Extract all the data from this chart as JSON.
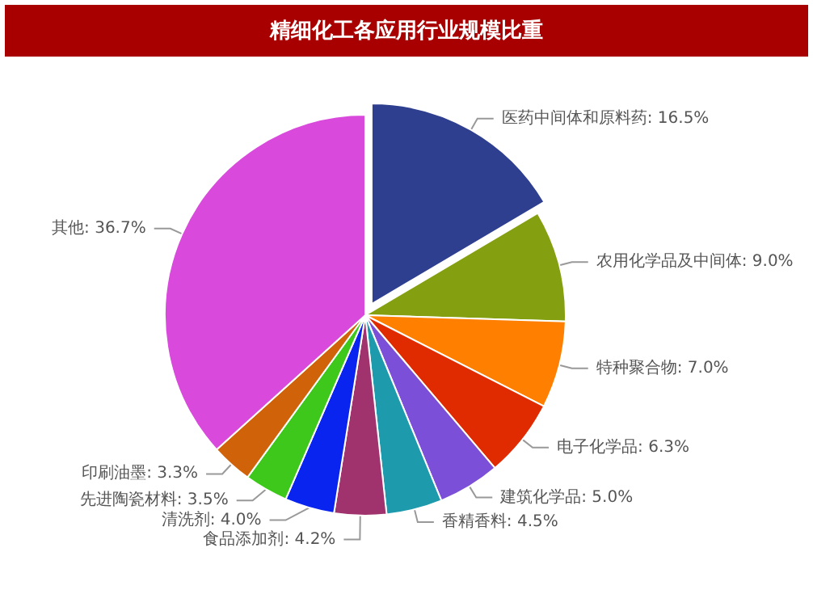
{
  "chart_data": {
    "type": "pie",
    "title": "精细化工各应用行业规模比重",
    "categories": [
      "医药中间体和原料药",
      "农用化学品及中间体",
      "特种聚合物",
      "电子化学品",
      "建筑化学品",
      "香精香料",
      "食品添加剂",
      "清洗剂",
      "先进陶瓷材料",
      "印刷油墨",
      "其他"
    ],
    "values": [
      16.5,
      9.0,
      7.0,
      6.3,
      5.0,
      4.5,
      4.2,
      4.0,
      3.5,
      3.3,
      36.7
    ],
    "value_labels": [
      "16.5%",
      "9.0%",
      "7.0%",
      "6.3%",
      "5.0%",
      "4.5%",
      "4.2%",
      "4.0%",
      "3.5%",
      "3.3%",
      "36.7%"
    ],
    "colors": [
      "#2e3f8f",
      "#84a010",
      "#ff7f00",
      "#e02a00",
      "#7b4fd8",
      "#1e9aad",
      "#a0336e",
      "#0a24f0",
      "#3fc81c",
      "#d0620a",
      "#d94adc"
    ],
    "legend": false
  }
}
